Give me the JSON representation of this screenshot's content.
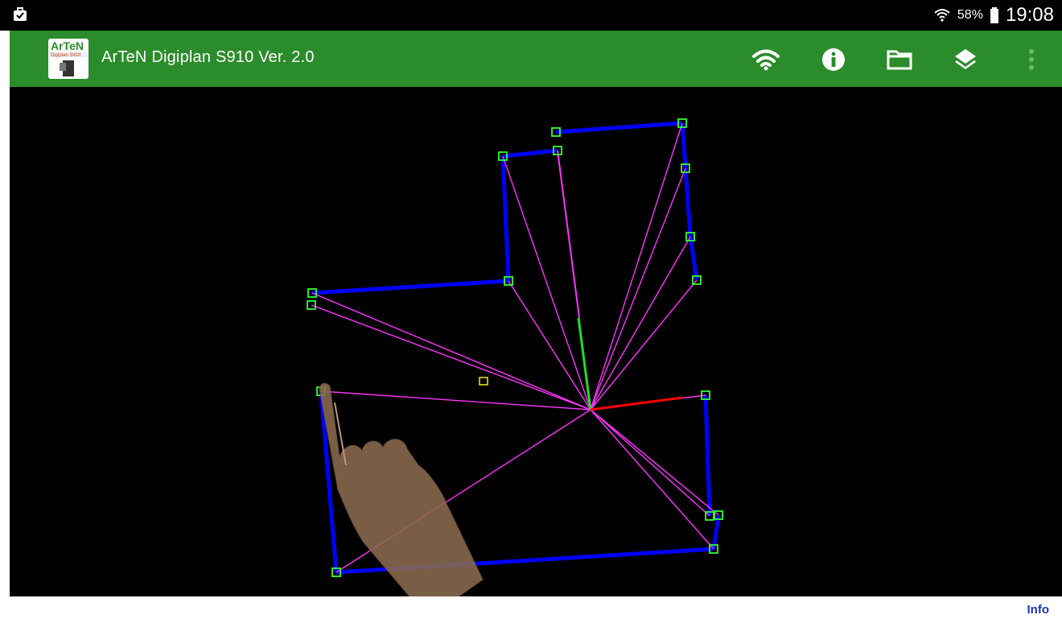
{
  "status_bar": {
    "battery_percent": "58%",
    "time": "19:08"
  },
  "app_bar": {
    "title": "ArTeN Digiplan S910 Ver. 2.0",
    "logo_text_line1": "ArTeN",
    "logo_text_line2": "Digiplan S910",
    "actions": [
      "wifi-icon",
      "info-icon",
      "folder-icon",
      "layers-icon",
      "overflow-menu-icon"
    ]
  },
  "bottom_bar": {
    "info_label": "Info"
  },
  "colors": {
    "app_bar": "#2b8c2b",
    "wall": "#0000ff",
    "measure_line": "#ff33ff",
    "vertex": "#33ff33",
    "axis_x": "#ff0000",
    "axis_y": "#22dd22",
    "marker": "#ffff00"
  }
}
